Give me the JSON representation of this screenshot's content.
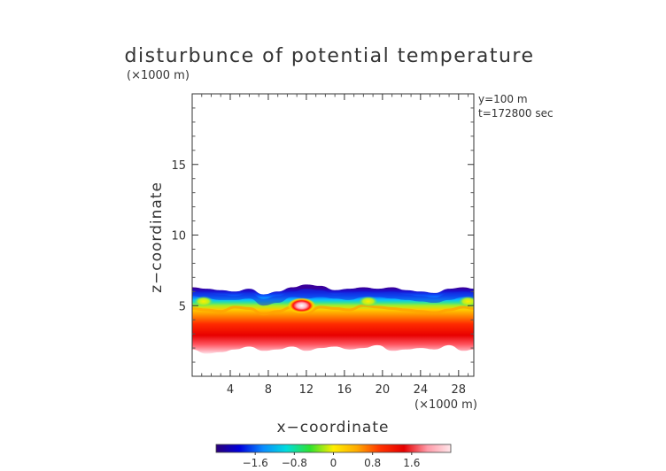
{
  "chart_data": {
    "type": "heatmap",
    "title": "disturbunce of potential temperature",
    "y_unit_label": "(×1000 m)",
    "x_unit_label": "(×1000 m)",
    "xlabel": "x−coordinate",
    "ylabel": "z−coordinate",
    "annotations": [
      "y=100 m",
      "t=172800 sec"
    ],
    "xlim": [
      0,
      29.6
    ],
    "ylim": [
      0,
      20
    ],
    "x_ticks": [
      4,
      8,
      12,
      16,
      20,
      24,
      28
    ],
    "x_tick_labels": [
      "4",
      "8",
      "12",
      "16",
      "20",
      "24",
      "28"
    ],
    "y_ticks": [
      5,
      10,
      15
    ],
    "y_tick_labels": [
      "5",
      "10",
      "15"
    ],
    "colorbar": {
      "range": [
        -2.4,
        2.4
      ],
      "ticks": [
        -1.6,
        -0.8,
        0,
        0.8,
        1.6
      ],
      "tick_labels": [
        "−1.6",
        "−0.8",
        "0",
        "0.8",
        "1.6"
      ],
      "colors": [
        "#2a0078",
        "#0000dd",
        "#0a8cff",
        "#00dddd",
        "#2fe22f",
        "#ffee00",
        "#ffaa00",
        "#ff3300",
        "#e60000",
        "#ff9aa8",
        "#ffe6ea"
      ]
    },
    "field": {
      "x": [
        0,
        1.5,
        3,
        4.5,
        6,
        7.5,
        9,
        10.5,
        12,
        13.5,
        15,
        16.5,
        18,
        19.5,
        21,
        22.5,
        24,
        25.5,
        27,
        28.5,
        29.6
      ],
      "layer_top_z": [
        6.3,
        6.2,
        6.1,
        6.0,
        6.2,
        5.8,
        6.0,
        6.3,
        6.5,
        6.4,
        6.1,
        6.2,
        6.3,
        6.2,
        6.3,
        6.1,
        6.0,
        5.9,
        6.2,
        6.3,
        6.2
      ],
      "cold_band_bottom_z": [
        5.7,
        5.5,
        5.4,
        5.4,
        5.5,
        5.0,
        5.2,
        5.6,
        5.5,
        5.6,
        5.5,
        5.4,
        5.6,
        5.6,
        5.5,
        5.4,
        5.3,
        5.2,
        5.4,
        5.6,
        5.5
      ],
      "warm_top_z": [
        4.8,
        4.7,
        4.6,
        4.9,
        4.8,
        4.4,
        4.6,
        4.9,
        4.5,
        4.9,
        4.8,
        4.7,
        5.0,
        4.9,
        4.8,
        4.7,
        4.6,
        4.5,
        4.7,
        4.9,
        4.8
      ],
      "bottom_z": [
        1.9,
        1.6,
        1.7,
        1.9,
        2.1,
        1.8,
        1.9,
        2.1,
        1.8,
        2.0,
        2.1,
        1.9,
        2.0,
        2.2,
        1.8,
        1.9,
        2.0,
        1.9,
        2.2,
        1.8,
        1.9
      ],
      "hot_blobs": [
        {
          "x": 11.5,
          "z": 5.0,
          "value": 2.2
        },
        {
          "x": 18.5,
          "z": 5.3,
          "value": 0.9
        },
        {
          "x": 1.2,
          "z": 5.3,
          "value": 0.8
        },
        {
          "x": 29.0,
          "z": 5.3,
          "value": 0.8
        }
      ]
    }
  }
}
